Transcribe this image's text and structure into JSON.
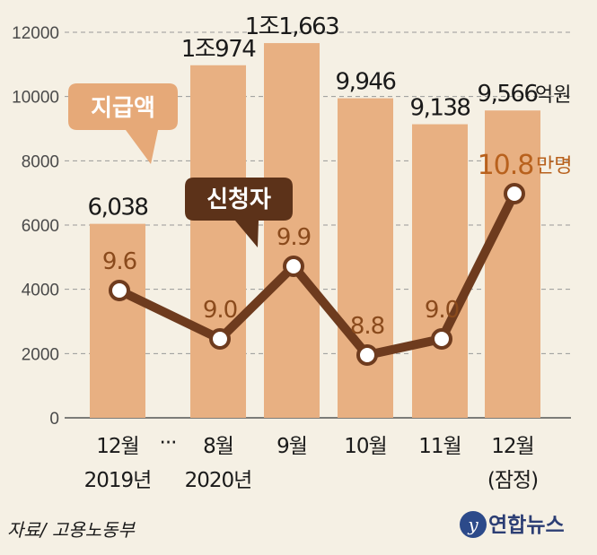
{
  "chart_data": {
    "type": "bar",
    "categories": [
      "12월",
      "8월",
      "9월",
      "10월",
      "11월",
      "12월"
    ],
    "category_sublabels": [
      "2019년",
      "2020년",
      "",
      "",
      "",
      "(잠정)"
    ],
    "break_marker": "···",
    "series": [
      {
        "name": "지급액",
        "values": [
          6038,
          10974,
          11663,
          9946,
          9138,
          9566
        ],
        "labels": [
          "6,038",
          "1조974",
          "1조1,663",
          "9,946",
          "9,138",
          "9,566"
        ],
        "unit": "억원",
        "color": "#e8b082"
      },
      {
        "name": "신청자",
        "type": "line",
        "values": [
          9.6,
          9.0,
          9.9,
          8.8,
          9.0,
          10.8
        ],
        "labels": [
          "9.6",
          "9.0",
          "9.9",
          "8.8",
          "9.0",
          "10.8"
        ],
        "unit": "만명",
        "color": "#6e3b1e"
      }
    ],
    "yticks": [
      "0",
      "2000",
      "4000",
      "6000",
      "8000",
      "10000",
      "12000"
    ],
    "ylim": [
      0,
      12000
    ],
    "grid": true
  },
  "source": "자료/ 고용노동부",
  "brand": "연합뉴스",
  "colors": {
    "background": "#f5f0e4",
    "bar": "#e8b082",
    "line": "#6e3b1e",
    "amount_badge": "#e6a978",
    "count_badge": "#5c3219"
  }
}
